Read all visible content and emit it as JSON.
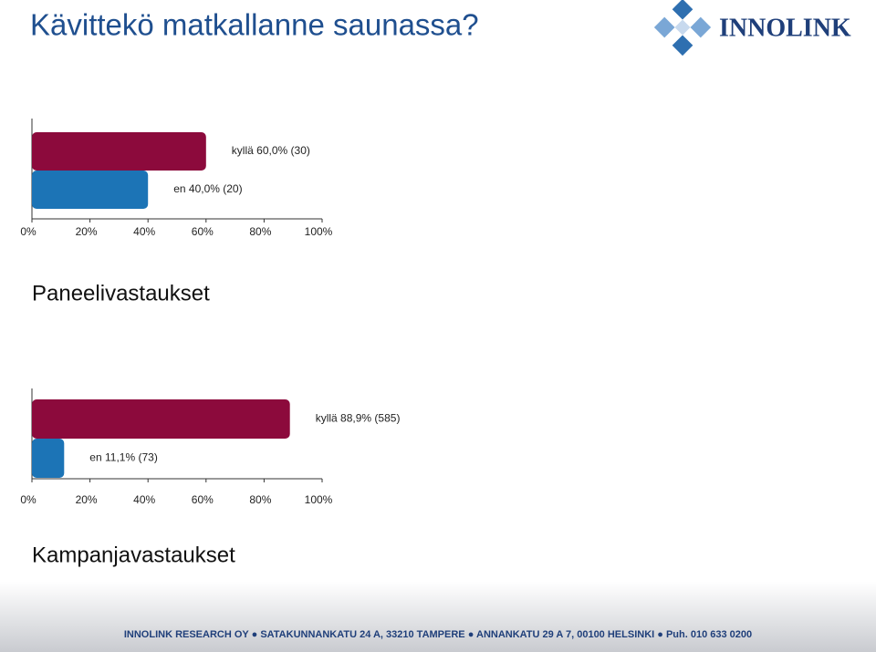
{
  "header": {
    "title": "Kävittekö matkallanne saunassa?",
    "logo": "INNOLINK"
  },
  "chart_data": [
    {
      "type": "bar",
      "orientation": "horizontal",
      "title": "Paneelivastaukset",
      "categories": [
        "kyllä",
        "en"
      ],
      "values": [
        60,
        40
      ],
      "value_labels": [
        "60,0%",
        "40,0%"
      ],
      "count_labels": [
        "(30)",
        "(20)"
      ],
      "colors": [
        "#8c0a3c",
        "#1c74b6"
      ],
      "xlim": [
        0,
        100
      ],
      "xticks": [
        {
          "value": 0,
          "label": "0%"
        },
        {
          "value": 20,
          "label": "20%"
        },
        {
          "value": 40,
          "label": "40%"
        },
        {
          "value": 60,
          "label": "60%"
        },
        {
          "value": 80,
          "label": "80%"
        },
        {
          "value": 100,
          "label": "100%"
        }
      ]
    },
    {
      "type": "bar",
      "orientation": "horizontal",
      "title": "Kampanjavastaukset",
      "categories": [
        "kyllä",
        "en"
      ],
      "values": [
        88.9,
        11.1
      ],
      "value_labels": [
        "88,9%",
        "11,1%"
      ],
      "count_labels": [
        "(585)",
        "(73)"
      ],
      "colors": [
        "#8c0a3c",
        "#1c74b6"
      ],
      "xlim": [
        0,
        100
      ],
      "xticks": [
        {
          "value": 0,
          "label": "0%"
        },
        {
          "value": 20,
          "label": "20%"
        },
        {
          "value": 40,
          "label": "40%"
        },
        {
          "value": 60,
          "label": "60%"
        },
        {
          "value": 80,
          "label": "80%"
        },
        {
          "value": 100,
          "label": "100%"
        }
      ]
    }
  ],
  "footer": {
    "items": [
      "INNOLINK RESEARCH OY",
      "SATAKUNNANKATU 24 A, 33210 TAMPERE",
      "ANNANKATU 29 A 7, 00100 HELSINKI",
      "Puh. 010 633 0200"
    ]
  }
}
